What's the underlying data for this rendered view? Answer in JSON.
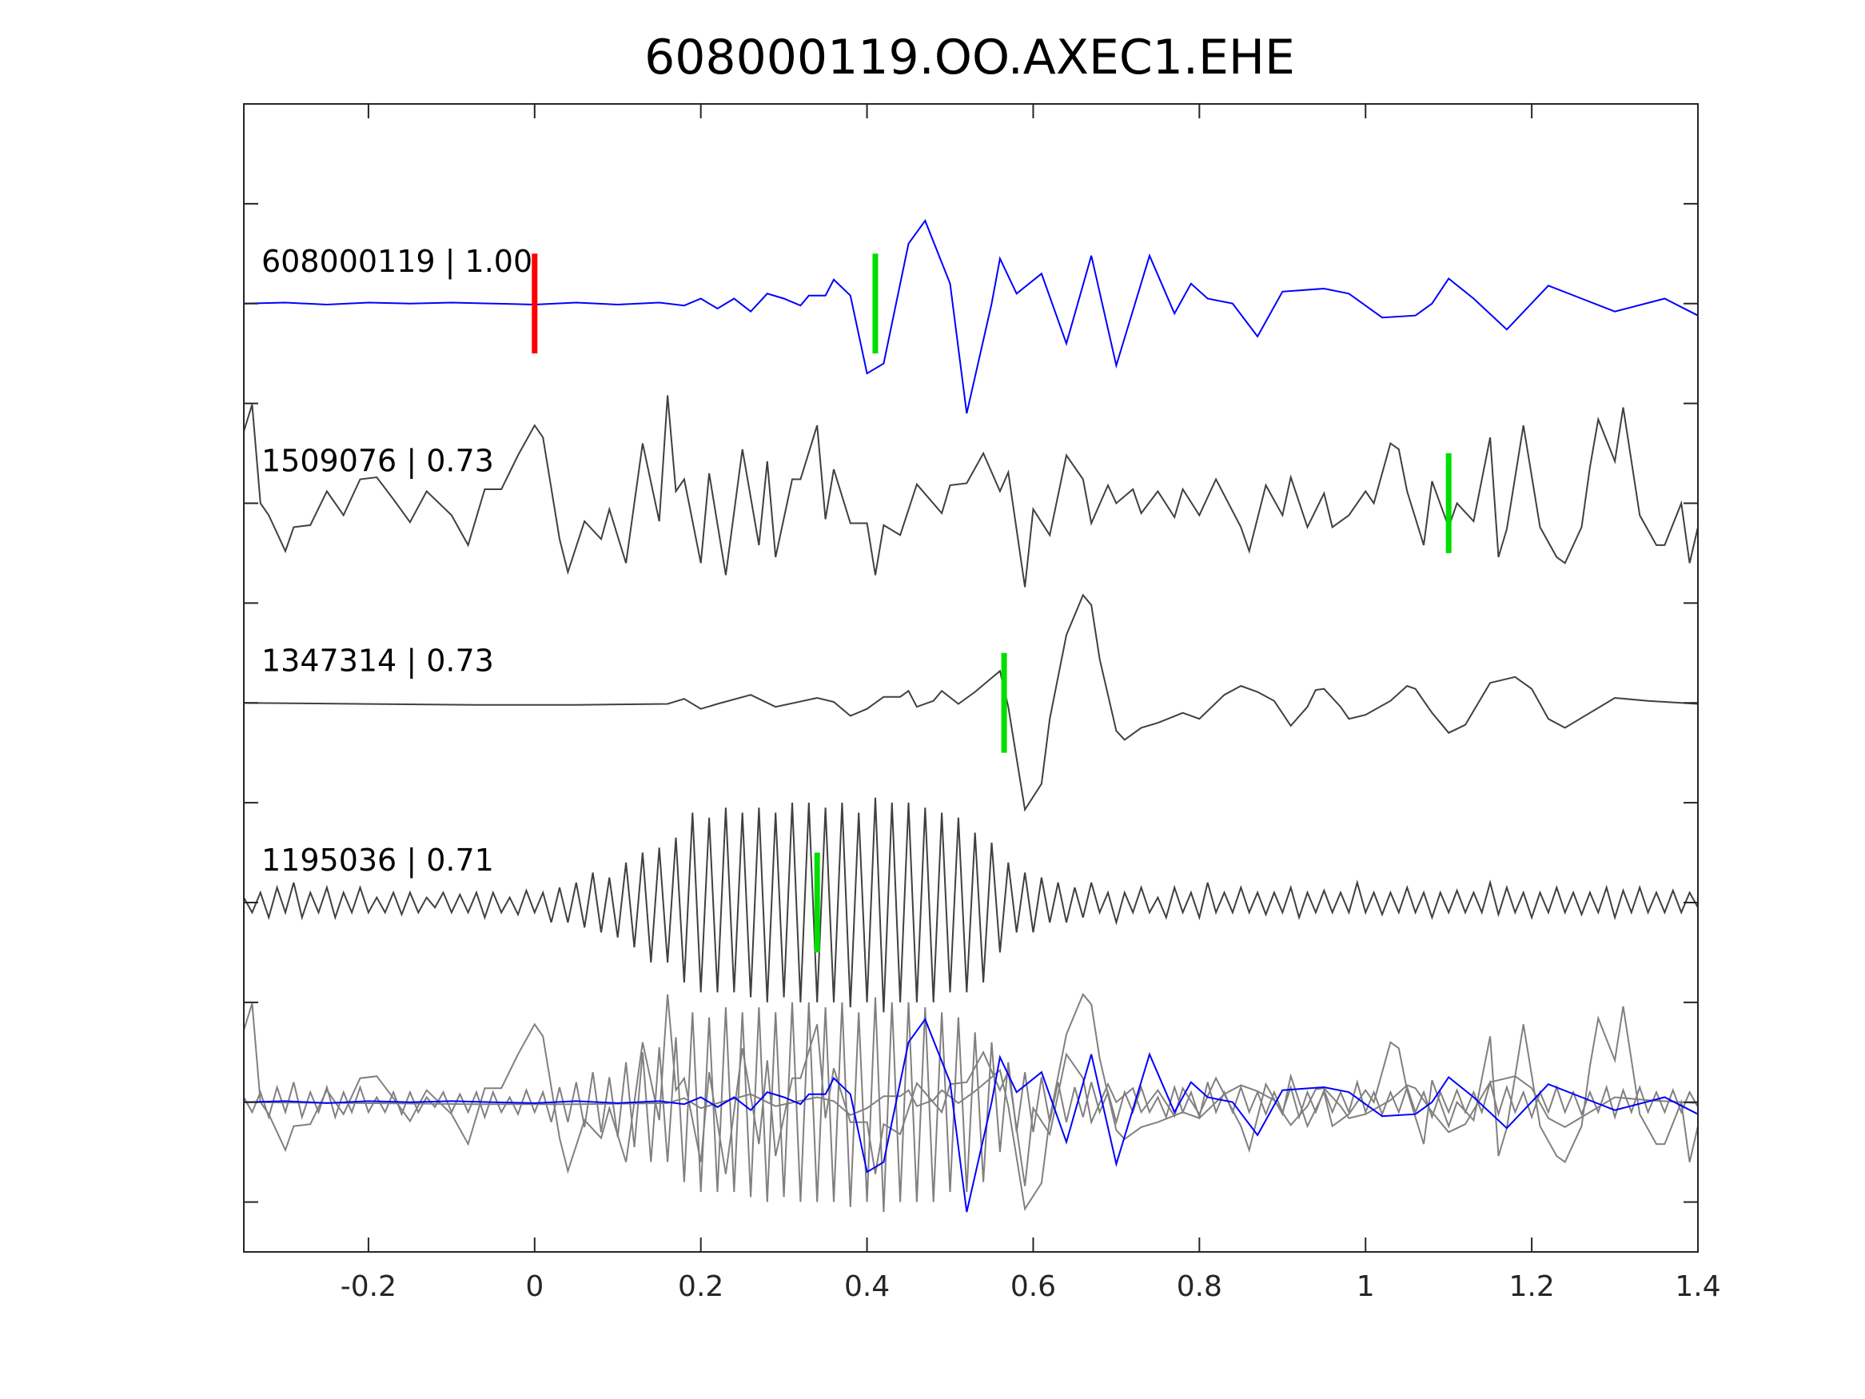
{
  "chart_data": {
    "type": "line",
    "title": "608000119.OO.AXEC1.EHE",
    "xlabel": "",
    "ylabel": "",
    "xlim": [
      -0.35,
      1.4
    ],
    "ylim": [
      -9.5,
      2
    ],
    "xticks": [
      -0.2,
      0,
      0.2,
      0.4,
      0.6,
      0.8,
      1,
      1.2,
      1.4
    ],
    "xtick_labels": [
      "-0.2",
      "0",
      "0.2",
      "0.4",
      "0.6",
      "0.8",
      "1",
      "1.2",
      "1.4"
    ],
    "yticks": [
      1,
      0,
      -1,
      -2,
      -3,
      -4,
      -5,
      -6,
      -7,
      -8,
      -9
    ],
    "grid": false,
    "colors": {
      "template": "#0000ff",
      "trace": "#404040",
      "stack_trace": "#808080",
      "reference_pick": "#ff0000",
      "pick": "#00dd00",
      "axis": "#262626"
    },
    "series": [
      {
        "name": "608000119",
        "label": "608000119 | 1.00",
        "offset": 0,
        "color": "#0000ff",
        "pick_time": 0.41,
        "reference_pick_time": 0,
        "t": [
          -0.35,
          -0.3,
          -0.25,
          -0.2,
          -0.15,
          -0.1,
          -0.05,
          0,
          0.05,
          0.1,
          0.15,
          0.18,
          0.2,
          0.22,
          0.24,
          0.26,
          0.28,
          0.3,
          0.32,
          0.33,
          0.35,
          0.36,
          0.38,
          0.4,
          0.42,
          0.45,
          0.47,
          0.5,
          0.52,
          0.55,
          0.56,
          0.58,
          0.61,
          0.64,
          0.67,
          0.7,
          0.74,
          0.77,
          0.79,
          0.81,
          0.84,
          0.87,
          0.9,
          0.95,
          0.98,
          1.02,
          1.06,
          1.08,
          1.1,
          1.13,
          1.17,
          1.22,
          1.26,
          1.3,
          1.36,
          1.4
        ],
        "v": [
          0,
          0.01,
          -0.01,
          0.01,
          0,
          0.01,
          0,
          -0.01,
          0.01,
          -0.01,
          0.01,
          -0.02,
          0.05,
          -0.05,
          0.05,
          -0.08,
          0.1,
          0.05,
          -0.02,
          0.08,
          0.08,
          0.24,
          0.08,
          -0.7,
          -0.6,
          0.6,
          0.83,
          0.2,
          -1.1,
          0.0,
          0.45,
          0.1,
          0.3,
          -0.4,
          0.48,
          -0.62,
          0.48,
          -0.1,
          0.2,
          0.05,
          0.0,
          -0.33,
          0.12,
          0.15,
          0.1,
          -0.14,
          -0.12,
          0.0,
          0.25,
          0.05,
          -0.26,
          0.18,
          0.05,
          -0.08,
          0.05,
          -0.12
        ]
      },
      {
        "name": "1509076",
        "label": "1509076 | 0.73",
        "offset": -2,
        "color": "#404040",
        "pick_time": 1.1,
        "t": [
          -0.35,
          -0.34,
          -0.33,
          -0.32,
          -0.3,
          -0.29,
          -0.27,
          -0.25,
          -0.23,
          -0.21,
          -0.19,
          -0.17,
          -0.15,
          -0.13,
          -0.1,
          -0.08,
          -0.06,
          -0.04,
          -0.02,
          0.0,
          0.01,
          0.03,
          0.04,
          0.06,
          0.08,
          0.09,
          0.11,
          0.13,
          0.15,
          0.16,
          0.17,
          0.18,
          0.2,
          0.21,
          0.23,
          0.25,
          0.27,
          0.28,
          0.29,
          0.31,
          0.32,
          0.34,
          0.35,
          0.36,
          0.38,
          0.4,
          0.41,
          0.42,
          0.44,
          0.46,
          0.49,
          0.5,
          0.52,
          0.54,
          0.56,
          0.57,
          0.59,
          0.6,
          0.62,
          0.64,
          0.66,
          0.67,
          0.69,
          0.7,
          0.72,
          0.73,
          0.75,
          0.77,
          0.78,
          0.8,
          0.82,
          0.85,
          0.86,
          0.88,
          0.9,
          0.91,
          0.93,
          0.95,
          0.96,
          0.98,
          1.0,
          1.01,
          1.03,
          1.04,
          1.05,
          1.07,
          1.08,
          1.1,
          1.11,
          1.13,
          1.15,
          1.16,
          1.17,
          1.19,
          1.21,
          1.23,
          1.24,
          1.26,
          1.27,
          1.28,
          1.3,
          1.31,
          1.33,
          1.35,
          1.36,
          1.38,
          1.39,
          1.4
        ],
        "v": [
          0.72,
          0.99,
          0,
          -0.12,
          -0.48,
          -0.24,
          -0.22,
          0.12,
          -0.12,
          0.24,
          0.26,
          0.04,
          -0.19,
          0.12,
          -0.12,
          -0.42,
          0.14,
          0.14,
          0.48,
          0.78,
          0.66,
          -0.36,
          -0.69,
          -0.18,
          -0.36,
          -0.06,
          -0.6,
          0.6,
          -0.18,
          1.08,
          0.12,
          0.24,
          -0.6,
          0.3,
          -0.72,
          0.54,
          -0.42,
          0.42,
          -0.54,
          0.24,
          0.24,
          0.78,
          -0.16,
          0.34,
          -0.2,
          -0.2,
          -0.72,
          -0.22,
          -0.32,
          0.19,
          -0.1,
          0.18,
          0.2,
          0.5,
          0.12,
          0.31,
          -0.84,
          -0.06,
          -0.32,
          0.48,
          0.24,
          -0.2,
          0.18,
          0,
          0.14,
          -0.1,
          0.12,
          -0.14,
          0.14,
          -0.12,
          0.24,
          -0.24,
          -0.48,
          0.18,
          -0.12,
          0.26,
          -0.24,
          0.1,
          -0.24,
          -0.12,
          0.12,
          0,
          0.6,
          0.54,
          0.12,
          -0.42,
          0.22,
          -0.24,
          0,
          -0.18,
          0.66,
          -0.54,
          -0.26,
          0.78,
          -0.24,
          -0.54,
          -0.6,
          -0.24,
          0.36,
          0.84,
          0.42,
          0.96,
          -0.12,
          -0.42,
          -0.42,
          0,
          -0.6,
          -0.24
        ]
      },
      {
        "name": "1347314",
        "label": "1347314 | 0.73",
        "offset": -4,
        "color": "#404040",
        "pick_time": 0.565,
        "t": [
          -0.35,
          -0.21,
          -0.07,
          0.05,
          0.16,
          0.18,
          0.2,
          0.22,
          0.26,
          0.29,
          0.34,
          0.36,
          0.38,
          0.4,
          0.42,
          0.44,
          0.45,
          0.46,
          0.48,
          0.49,
          0.51,
          0.53,
          0.55,
          0.56,
          0.57,
          0.59,
          0.61,
          0.62,
          0.64,
          0.66,
          0.67,
          0.68,
          0.7,
          0.71,
          0.73,
          0.75,
          0.78,
          0.8,
          0.83,
          0.85,
          0.87,
          0.89,
          0.91,
          0.93,
          0.94,
          0.95,
          0.97,
          0.98,
          1.0,
          1.03,
          1.05,
          1.06,
          1.08,
          1.1,
          1.12,
          1.15,
          1.18,
          1.2,
          1.22,
          1.24,
          1.27,
          1.3,
          1.34,
          1.4
        ],
        "v": [
          0,
          -0.01,
          -0.02,
          -0.02,
          -0.01,
          0.04,
          -0.06,
          -0.01,
          0.08,
          -0.04,
          0.05,
          0.01,
          -0.13,
          -0.06,
          0.06,
          0.06,
          0.12,
          -0.04,
          0.02,
          0.12,
          -0.01,
          0.11,
          0.25,
          0.32,
          -0.04,
          -1.07,
          -0.81,
          -0.16,
          0.68,
          1.08,
          0.98,
          0.44,
          -0.28,
          -0.37,
          -0.25,
          -0.2,
          -0.1,
          -0.16,
          0.08,
          0.17,
          0.11,
          0.02,
          -0.23,
          -0.04,
          0.13,
          0.14,
          -0.04,
          -0.16,
          -0.12,
          0.02,
          0.17,
          0.14,
          -0.1,
          -0.3,
          -0.22,
          0.2,
          0.26,
          0.14,
          -0.16,
          -0.25,
          -0.1,
          0.05,
          0.02,
          -0.01
        ]
      },
      {
        "name": "1195036",
        "label": "1195036 | 0.71",
        "offset": -6,
        "color": "#404040",
        "pick_time": 0.34,
        "t0": -0.35,
        "dt": 0.01,
        "v": [
          0.05,
          -0.1,
          0.1,
          -0.15,
          0.15,
          -0.1,
          0.2,
          -0.15,
          0.1,
          -0.1,
          0.15,
          -0.15,
          0.1,
          -0.1,
          0.15,
          -0.1,
          0.05,
          -0.1,
          0.1,
          -0.12,
          0.1,
          -0.1,
          0.05,
          -0.05,
          0.1,
          -0.1,
          0.08,
          -0.1,
          0.1,
          -0.15,
          0.1,
          -0.1,
          0.05,
          -0.12,
          0.12,
          -0.1,
          0.1,
          -0.2,
          0.15,
          -0.2,
          0.2,
          -0.25,
          0.3,
          -0.3,
          0.25,
          -0.35,
          0.4,
          -0.45,
          0.5,
          -0.6,
          0.55,
          -0.6,
          0.65,
          -0.8,
          0.9,
          -0.9,
          0.85,
          -0.9,
          0.95,
          -0.9,
          0.9,
          -0.95,
          0.95,
          -1.0,
          0.9,
          -0.95,
          1.0,
          -1.0,
          1.0,
          -1.0,
          0.95,
          -1.0,
          1.0,
          -1.05,
          0.9,
          -1.0,
          1.05,
          -1.1,
          1.0,
          -1.0,
          1.0,
          -1.0,
          0.95,
          -1.0,
          0.9,
          -0.9,
          0.85,
          -0.9,
          0.7,
          -0.8,
          0.6,
          -0.5,
          0.4,
          -0.3,
          0.3,
          -0.3,
          0.25,
          -0.2,
          0.2,
          -0.2,
          0.15,
          -0.15,
          0.2,
          -0.1,
          0.1,
          -0.2,
          0.1,
          -0.1,
          0.15,
          -0.1,
          0.05,
          -0.15,
          0.15,
          -0.1,
          0.1,
          -0.15,
          0.2,
          -0.1,
          0.1,
          -0.1,
          0.15,
          -0.1,
          0.1,
          -0.12,
          0.1,
          -0.1,
          0.15,
          -0.15,
          0.1,
          -0.1,
          0.12,
          -0.1,
          0.1,
          -0.1,
          0.2,
          -0.1,
          0.1,
          -0.12,
          0.1,
          -0.1,
          0.15,
          -0.1,
          0.1,
          -0.15,
          0.1,
          -0.1,
          0.12,
          -0.1,
          0.1,
          -0.1,
          0.2,
          -0.12,
          0.15,
          -0.1,
          0.1,
          -0.15,
          0.1,
          -0.1,
          0.15,
          -0.1,
          0.1,
          -0.12,
          0.1,
          -0.1,
          0.15,
          -0.15,
          0.12,
          -0.1,
          0.15,
          -0.1,
          0.1,
          -0.1,
          0.12,
          -0.1,
          0.1,
          -0.05
        ]
      }
    ],
    "stack": {
      "name": "overlay",
      "offset": -8,
      "description_of_members": [
        "608000119",
        "1509076",
        "1347314",
        "1195036"
      ]
    }
  }
}
